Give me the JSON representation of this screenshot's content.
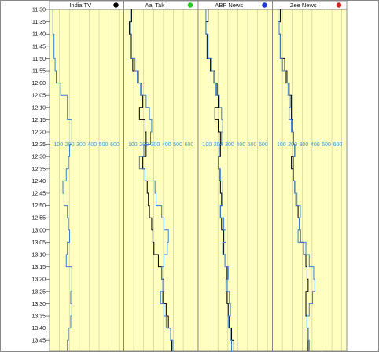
{
  "chart_data": {
    "type": "line",
    "y_axis": {
      "ticks": [
        "11:30",
        "11:35",
        "11:40",
        "11:45",
        "11:50",
        "11:55",
        "12:00",
        "12:05",
        "12:10",
        "12:15",
        "12:20",
        "12:25",
        "12:30",
        "12:35",
        "12:40",
        "12:45",
        "12:50",
        "12:55",
        "13:00",
        "13:05",
        "13:10",
        "13:15",
        "13:20",
        "13:25",
        "13:30",
        "13:35",
        "13:40",
        "13:45"
      ],
      "range": [
        "11:30",
        "13:47"
      ]
    },
    "x_axis": {
      "ticks": [
        100,
        200,
        300,
        400,
        500,
        600
      ],
      "range": [
        0,
        600
      ]
    },
    "grid": true,
    "panels": [
      {
        "title": "India TV",
        "dot_color": "#000000",
        "series": [
          {
            "color": "#3a7fd5",
            "values": [
              [
                0,
                30
              ],
              [
                1,
                30
              ],
              [
                2,
                40
              ],
              [
                3,
                40
              ],
              [
                4,
                50
              ],
              [
                5,
                60
              ],
              [
                6,
                100
              ],
              [
                7,
                160
              ],
              [
                8,
                160
              ],
              [
                9,
                200
              ],
              [
                10,
                200
              ],
              [
                11,
                180
              ],
              [
                12,
                170
              ],
              [
                13,
                150
              ],
              [
                14,
                120
              ],
              [
                15,
                130
              ],
              [
                16,
                160
              ],
              [
                17,
                170
              ],
              [
                18,
                180
              ],
              [
                19,
                160
              ],
              [
                20,
                150
              ],
              [
                21,
                200
              ],
              [
                22,
                200
              ],
              [
                23,
                190
              ],
              [
                24,
                200
              ],
              [
                25,
                190
              ],
              [
                26,
                170
              ],
              [
                27,
                160
              ]
            ]
          }
        ]
      },
      {
        "title": "Aaj Tak",
        "dot_color": "#22cc22",
        "series": [
          {
            "color": "#000000",
            "values": [
              [
                0,
                70
              ],
              [
                1,
                50
              ],
              [
                2,
                60
              ],
              [
                3,
                60
              ],
              [
                4,
                80
              ],
              [
                5,
                130
              ],
              [
                6,
                160
              ],
              [
                7,
                170
              ],
              [
                8,
                140
              ],
              [
                9,
                190
              ],
              [
                10,
                200
              ],
              [
                11,
                200
              ],
              [
                12,
                170
              ],
              [
                13,
                190
              ],
              [
                14,
                210
              ],
              [
                15,
                220
              ],
              [
                16,
                230
              ],
              [
                17,
                250
              ],
              [
                18,
                260
              ],
              [
                19,
                270
              ],
              [
                20,
                310
              ],
              [
                21,
                340
              ],
              [
                22,
                360
              ],
              [
                23,
                350
              ],
              [
                24,
                380
              ],
              [
                25,
                400
              ],
              [
                26,
                420
              ],
              [
                27,
                430
              ]
            ]
          },
          {
            "color": "#3a7fd5",
            "values": [
              [
                0,
                60
              ],
              [
                1,
                60
              ],
              [
                2,
                70
              ],
              [
                3,
                70
              ],
              [
                4,
                100
              ],
              [
                5,
                120
              ],
              [
                6,
                150
              ],
              [
                7,
                200
              ],
              [
                8,
                230
              ],
              [
                9,
                250
              ],
              [
                10,
                240
              ],
              [
                11,
                180
              ],
              [
                12,
                140
              ],
              [
                13,
                190
              ],
              [
                14,
                280
              ],
              [
                15,
                290
              ],
              [
                16,
                340
              ],
              [
                17,
                360
              ],
              [
                18,
                400
              ],
              [
                19,
                390
              ],
              [
                20,
                360
              ],
              [
                21,
                340
              ],
              [
                22,
                350
              ],
              [
                23,
                330
              ],
              [
                24,
                360
              ],
              [
                25,
                380
              ],
              [
                26,
                420
              ],
              [
                27,
                440
              ]
            ]
          }
        ]
      },
      {
        "title": "ABP News",
        "dot_color": "#1e3ad8",
        "series": [
          {
            "color": "#000000",
            "values": [
              [
                0,
                90
              ],
              [
                1,
                70
              ],
              [
                2,
                80
              ],
              [
                3,
                80
              ],
              [
                4,
                110
              ],
              [
                5,
                150
              ],
              [
                6,
                170
              ],
              [
                7,
                180
              ],
              [
                8,
                150
              ],
              [
                9,
                180
              ],
              [
                10,
                200
              ],
              [
                11,
                200
              ],
              [
                12,
                180
              ],
              [
                13,
                190
              ],
              [
                14,
                200
              ],
              [
                15,
                210
              ],
              [
                16,
                200
              ],
              [
                17,
                210
              ],
              [
                18,
                230
              ],
              [
                19,
                230
              ],
              [
                20,
                250
              ],
              [
                21,
                260
              ],
              [
                22,
                250
              ],
              [
                23,
                260
              ],
              [
                24,
                270
              ],
              [
                25,
                280
              ],
              [
                26,
                300
              ],
              [
                27,
                320
              ]
            ]
          },
          {
            "color": "#3a7fd5",
            "values": [
              [
                0,
                70
              ],
              [
                1,
                70
              ],
              [
                2,
                90
              ],
              [
                3,
                90
              ],
              [
                4,
                120
              ],
              [
                5,
                140
              ],
              [
                6,
                160
              ],
              [
                7,
                190
              ],
              [
                8,
                210
              ],
              [
                9,
                220
              ],
              [
                10,
                210
              ],
              [
                11,
                190
              ],
              [
                12,
                180
              ],
              [
                13,
                200
              ],
              [
                14,
                220
              ],
              [
                15,
                220
              ],
              [
                16,
                200
              ],
              [
                17,
                230
              ],
              [
                18,
                250
              ],
              [
                19,
                220
              ],
              [
                20,
                240
              ],
              [
                21,
                270
              ],
              [
                22,
                260
              ],
              [
                23,
                280
              ],
              [
                24,
                290
              ],
              [
                25,
                270
              ],
              [
                26,
                290
              ],
              [
                27,
                300
              ]
            ]
          }
        ]
      },
      {
        "title": "Zee News",
        "dot_color": "#dd2222",
        "series": [
          {
            "color": "#000000",
            "values": [
              [
                0,
                70
              ],
              [
                1,
                60
              ],
              [
                2,
                70
              ],
              [
                3,
                70
              ],
              [
                4,
                110
              ],
              [
                5,
                130
              ],
              [
                6,
                150
              ],
              [
                7,
                170
              ],
              [
                8,
                170
              ],
              [
                9,
                180
              ],
              [
                10,
                190
              ],
              [
                11,
                200
              ],
              [
                12,
                170
              ],
              [
                13,
                190
              ],
              [
                14,
                200
              ],
              [
                15,
                210
              ],
              [
                16,
                230
              ],
              [
                17,
                240
              ],
              [
                18,
                250
              ],
              [
                19,
                280
              ],
              [
                20,
                300
              ],
              [
                21,
                310
              ],
              [
                22,
                320
              ],
              [
                23,
                300
              ],
              [
                24,
                300
              ],
              [
                25,
                310
              ],
              [
                26,
                320
              ],
              [
                27,
                320
              ]
            ]
          },
          {
            "color": "#3a7fd5",
            "values": [
              [
                0,
                50
              ],
              [
                1,
                60
              ],
              [
                2,
                70
              ],
              [
                3,
                70
              ],
              [
                4,
                90
              ],
              [
                5,
                120
              ],
              [
                6,
                140
              ],
              [
                7,
                160
              ],
              [
                8,
                150
              ],
              [
                9,
                170
              ],
              [
                10,
                190
              ],
              [
                11,
                200
              ],
              [
                12,
                190
              ],
              [
                13,
                190
              ],
              [
                14,
                200
              ],
              [
                15,
                220
              ],
              [
                16,
                250
              ],
              [
                17,
                240
              ],
              [
                18,
                230
              ],
              [
                19,
                300
              ],
              [
                20,
                330
              ],
              [
                21,
                370
              ],
              [
                22,
                380
              ],
              [
                23,
                360
              ],
              [
                24,
                330
              ],
              [
                25,
                310
              ],
              [
                26,
                320
              ],
              [
                27,
                330
              ]
            ]
          }
        ]
      }
    ]
  }
}
